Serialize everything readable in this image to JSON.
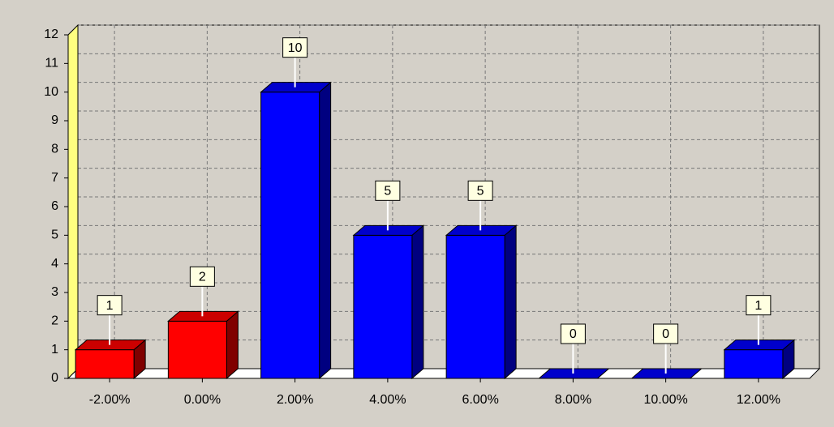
{
  "chart_data": {
    "type": "bar3d",
    "categories": [
      "-2.00%",
      "0.00%",
      "2.00%",
      "4.00%",
      "6.00%",
      "8.00%",
      "10.00%",
      "12.00%"
    ],
    "values": [
      1,
      2,
      10,
      5,
      5,
      0,
      0,
      1
    ],
    "colors": [
      "#ff0000",
      "#ff0000",
      "#0000ff",
      "#0000ff",
      "#0000ff",
      "#0000ff",
      "#0000ff",
      "#0000ff"
    ],
    "ylim": [
      0,
      12
    ],
    "yticks": [
      0,
      1,
      2,
      3,
      4,
      5,
      6,
      7,
      8,
      9,
      10,
      11,
      12
    ],
    "grid": true
  }
}
